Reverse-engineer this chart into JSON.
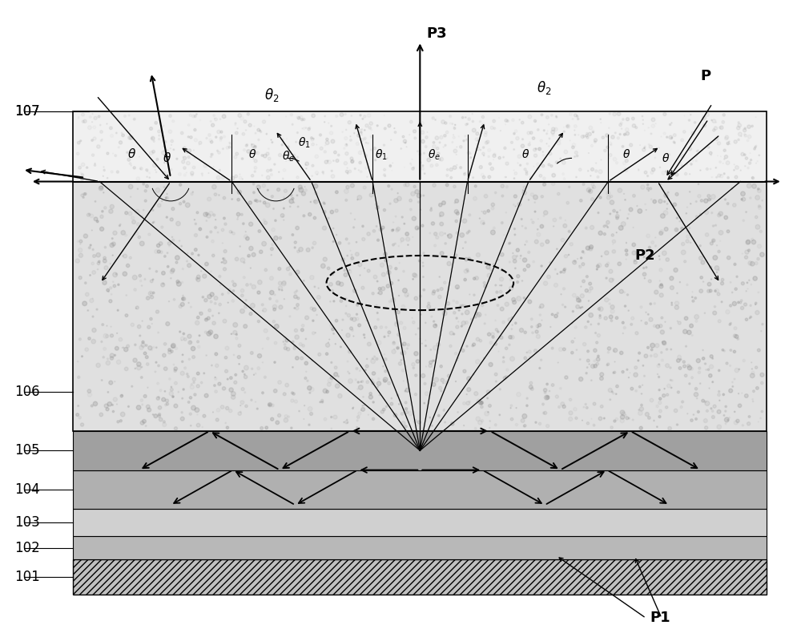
{
  "fig_width": 10.0,
  "fig_height": 7.8,
  "bg_color": "#ffffff",
  "layer_colors": {
    "106": "#d8d8d8",
    "105": "#a0a0a0",
    "104": "#b8b8b8",
    "103": "#d0d0d0",
    "102": "#b0b0b0",
    "101_bg": "#c8c8c8",
    "101_hatch": "////",
    "top_region": "#e8e8e8"
  },
  "layer_labels": [
    "107",
    "106",
    "105",
    "104",
    "103",
    "102",
    "101"
  ],
  "point_labels": [
    "P1",
    "P2",
    "P3"
  ],
  "angle_labels": [
    "θ",
    "θ_2",
    "θ_1",
    "θ_e"
  ],
  "font_size_labels": 13,
  "font_size_numbers": 12
}
